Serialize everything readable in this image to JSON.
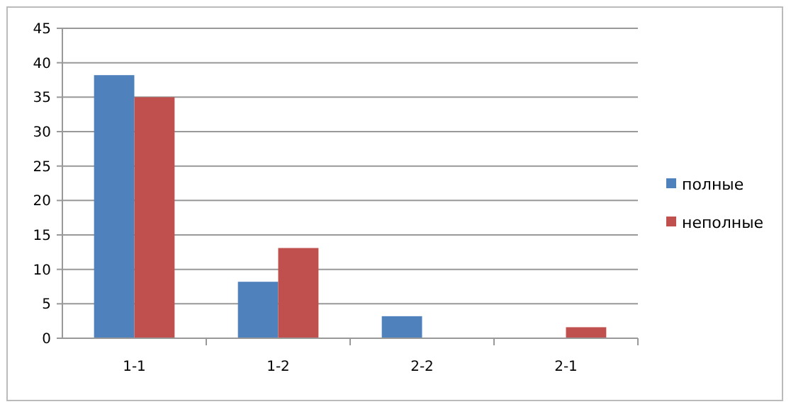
{
  "chart_data": {
    "type": "bar",
    "categories": [
      "1-1",
      "1-2",
      "2-2",
      "2-1"
    ],
    "series": [
      {
        "name": "полные",
        "color": "#4f81bd",
        "values": [
          38.2,
          8.2,
          3.2,
          0
        ]
      },
      {
        "name": "неполные",
        "color": "#c0504d",
        "values": [
          35,
          13.1,
          0,
          1.6
        ]
      }
    ],
    "ylim": [
      0,
      45
    ],
    "yticks": [
      0,
      5,
      10,
      15,
      20,
      25,
      30,
      35,
      40,
      45
    ],
    "grid": "y",
    "legend": "right"
  }
}
